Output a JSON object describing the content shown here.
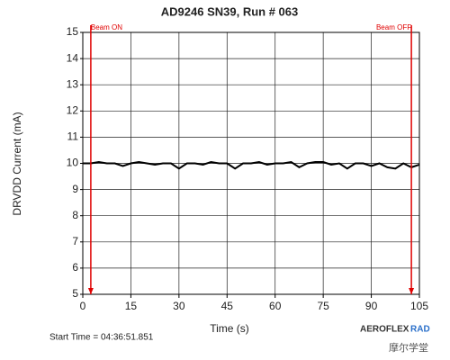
{
  "chart_data": {
    "type": "line",
    "title": "AD9246 SN39, Run # 063",
    "x_label": "Time (s)",
    "y_label": "DRVDD Current (mA)",
    "x": [
      0,
      2.5,
      5,
      7.5,
      10,
      12.5,
      15,
      17.5,
      20,
      22.5,
      25,
      27.5,
      30,
      32.5,
      35,
      37.5,
      40,
      42.5,
      45,
      47.5,
      50,
      52.5,
      55,
      57.5,
      60,
      62.5,
      65,
      67.5,
      70,
      72.5,
      75,
      77.5,
      80,
      82.5,
      85,
      87.5,
      90,
      92.5,
      95,
      97.5,
      100,
      102.5,
      105
    ],
    "values": [
      10.0,
      10.0,
      10.05,
      10.0,
      10.0,
      9.9,
      10.0,
      10.05,
      10.0,
      9.95,
      10.0,
      10.0,
      9.8,
      10.0,
      10.0,
      9.95,
      10.05,
      10.0,
      10.0,
      9.8,
      10.0,
      10.0,
      10.05,
      9.95,
      10.0,
      10.0,
      10.05,
      9.85,
      10.0,
      10.05,
      10.05,
      9.95,
      10.0,
      9.8,
      10.0,
      10.0,
      9.9,
      10.0,
      9.85,
      9.8,
      10.0,
      9.85,
      9.95
    ],
    "color": "#000000",
    "xlim": [
      0,
      105
    ],
    "xticks": [
      0,
      15,
      30,
      45,
      60,
      75,
      90,
      105
    ],
    "ylim": [
      5,
      15
    ],
    "yticks": [
      5,
      6,
      7,
      8,
      9,
      10,
      11,
      12,
      13,
      14,
      15
    ],
    "grid": true,
    "markers": [
      {
        "x": 2.5,
        "label": "Beam ON",
        "color": "#e00000"
      },
      {
        "x": 102.5,
        "label": "Beam OFF",
        "color": "#e00000"
      }
    ],
    "footer": "Start Time = 04:36:51.851",
    "logo": [
      "AEROFLEX",
      "RAD"
    ],
    "watermark": "摩尔学堂"
  }
}
